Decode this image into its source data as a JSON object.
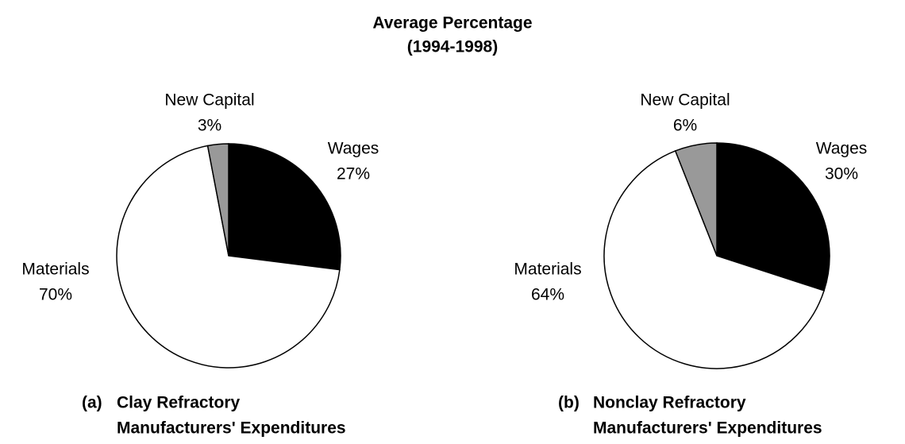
{
  "title": [
    "Average Percentage",
    "(1994-1998)"
  ],
  "chart_data": [
    {
      "type": "pie",
      "label": "(a)",
      "title": [
        "Clay Refractory",
        "Manufacturers' Expenditures"
      ],
      "categories": [
        "Wages",
        "Materials",
        "New Capital"
      ],
      "values": [
        27,
        70,
        3
      ],
      "value_labels": [
        "27%",
        "70%",
        "3%"
      ],
      "colors": [
        "#000000",
        "#ffffff",
        "#999999"
      ]
    },
    {
      "type": "pie",
      "label": "(b)",
      "title": [
        "Nonclay Refractory",
        "Manufacturers' Expenditures"
      ],
      "categories": [
        "Wages",
        "Materials",
        "New Capital"
      ],
      "values": [
        30,
        64,
        6
      ],
      "value_labels": [
        "30%",
        "64%",
        "6%"
      ],
      "colors": [
        "#000000",
        "#ffffff",
        "#999999"
      ]
    }
  ]
}
